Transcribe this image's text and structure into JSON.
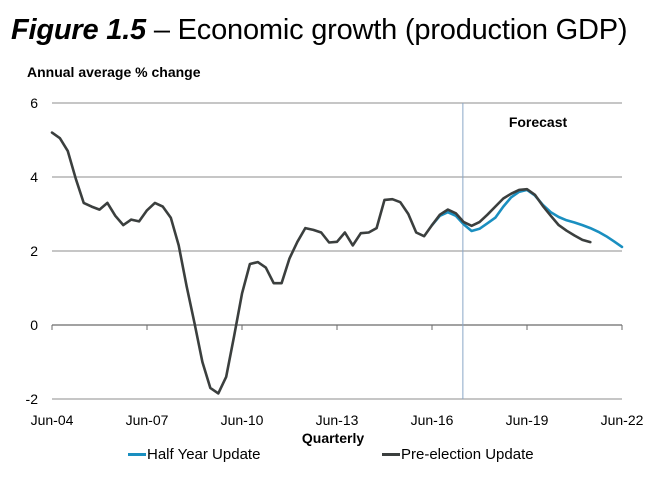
{
  "header": {
    "figure_label": "Figure 1.5",
    "title_rest": " – Economic growth (production GDP)"
  },
  "chart_data": {
    "type": "line",
    "title": "Figure 1.5 – Economic growth (production GDP)",
    "ylabel": "Annual average % change",
    "xlabel": "Quarterly",
    "ylim": [
      -2,
      6
    ],
    "yticks": [
      6,
      4,
      2,
      0,
      -2
    ],
    "xtick_labels": [
      "Jun-04",
      "Jun-07",
      "Jun-10",
      "Jun-13",
      "Jun-16",
      "Jun-19",
      "Jun-22"
    ],
    "x_start": "Jun-04",
    "x_frequency": "quarterly",
    "x_range_quarters": [
      0,
      72
    ],
    "grid": true,
    "annotation": {
      "text": "Forecast",
      "divider_at_quarter": 51.9,
      "divider_label": "Mar-17"
    },
    "legend_position": "bottom",
    "series": [
      {
        "name": "Half Year Update",
        "color": "#1a8fc0",
        "start_quarter": 48,
        "values": [
          2.7,
          2.95,
          3.05,
          2.95,
          2.72,
          2.54,
          2.6,
          2.75,
          2.9,
          3.2,
          3.45,
          3.6,
          3.65,
          3.5,
          3.25,
          3.05,
          2.92,
          2.83,
          2.77,
          2.7,
          2.62,
          2.52,
          2.4,
          2.26,
          2.11
        ]
      },
      {
        "name": "Pre-election Update",
        "color": "#3b3f3e",
        "start_quarter": 0,
        "values": [
          5.2,
          5.05,
          4.7,
          3.95,
          3.3,
          3.2,
          3.12,
          3.3,
          2.95,
          2.7,
          2.85,
          2.8,
          3.1,
          3.3,
          3.2,
          2.9,
          2.15,
          1.05,
          0.05,
          -1.0,
          -1.7,
          -1.85,
          -1.4,
          -0.3,
          0.85,
          1.65,
          1.7,
          1.55,
          1.13,
          1.13,
          1.8,
          2.25,
          2.62,
          2.57,
          2.5,
          2.23,
          2.25,
          2.5,
          2.15,
          2.48,
          2.5,
          2.62,
          3.38,
          3.4,
          3.32,
          3.0,
          2.5,
          2.4,
          2.7,
          2.98,
          3.12,
          3.02,
          2.78,
          2.68,
          2.78,
          2.98,
          3.2,
          3.42,
          3.55,
          3.65,
          3.67,
          3.52,
          3.22,
          2.95,
          2.7,
          2.55,
          2.42,
          2.3,
          2.24
        ]
      }
    ]
  },
  "legend": {
    "items": [
      {
        "label": "Half Year Update",
        "color": "#1a8fc0"
      },
      {
        "label": "Pre-election Update",
        "color": "#3b3f3e"
      }
    ]
  }
}
